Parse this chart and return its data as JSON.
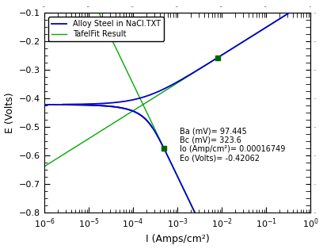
{
  "xlabel": "I (Amps/cm²)",
  "ylabel": "E (Volts)",
  "ylim": [
    -0.8,
    -0.1
  ],
  "xlim_low": 1e-06,
  "xlim_high": 1.0,
  "E0": -0.42062,
  "I0": 0.00016749,
  "Ba_mV": 97.445,
  "Bc_mV": 323.6,
  "annotation_line1": "Ba (mV)= 97.445",
  "annotation_line2": "Bc (mV)= 323.6",
  "annotation_line3": "Io (Amp/cm²)= 0.00016749",
  "annotation_line4": "Eo (Volts)= -0.42062",
  "legend_label_data": "Alloy Steel in NaCl.TXT",
  "legend_label_tafel": "TafelFit Result",
  "line_color_data": "#0000cc",
  "line_color_tafel": "#00aa00",
  "marker_color": "#006600",
  "annotation_fontsize": 7,
  "axis_label_fontsize": 9,
  "tick_label_fontsize": 8
}
